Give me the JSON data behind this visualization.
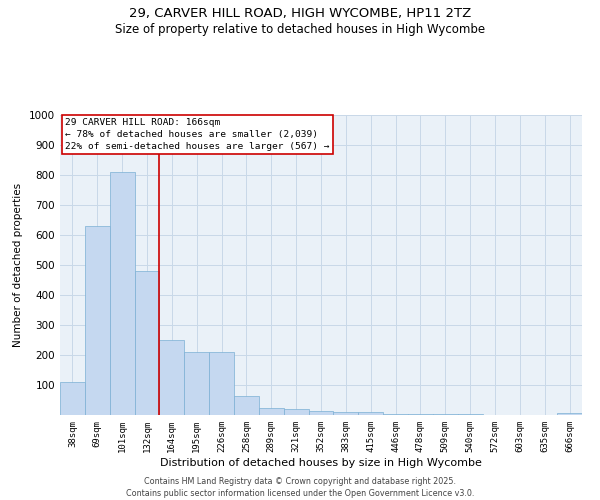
{
  "title_line1": "29, CARVER HILL ROAD, HIGH WYCOMBE, HP11 2TZ",
  "title_line2": "Size of property relative to detached houses in High Wycombe",
  "xlabel": "Distribution of detached houses by size in High Wycombe",
  "ylabel": "Number of detached properties",
  "categories": [
    "38sqm",
    "69sqm",
    "101sqm",
    "132sqm",
    "164sqm",
    "195sqm",
    "226sqm",
    "258sqm",
    "289sqm",
    "321sqm",
    "352sqm",
    "383sqm",
    "415sqm",
    "446sqm",
    "478sqm",
    "509sqm",
    "540sqm",
    "572sqm",
    "603sqm",
    "635sqm",
    "666sqm"
  ],
  "values": [
    110,
    630,
    810,
    480,
    250,
    210,
    210,
    65,
    25,
    20,
    13,
    10,
    10,
    5,
    3,
    2,
    2,
    1,
    1,
    1,
    8
  ],
  "bar_color": "#c5d8f0",
  "bar_edge_color": "#7bafd4",
  "vline_index": 3.5,
  "highlight_label": "29 CARVER HILL ROAD: 166sqm",
  "annotation_line1": "← 78% of detached houses are smaller (2,039)",
  "annotation_line2": "22% of semi-detached houses are larger (567) →",
  "annotation_box_color": "#ffffff",
  "annotation_box_edge": "#cc0000",
  "vline_color": "#cc0000",
  "ylim": [
    0,
    1000
  ],
  "yticks": [
    0,
    100,
    200,
    300,
    400,
    500,
    600,
    700,
    800,
    900,
    1000
  ],
  "grid_color": "#c8d8e8",
  "background_color": "#eaf1f8",
  "footer_line1": "Contains HM Land Registry data © Crown copyright and database right 2025.",
  "footer_line2": "Contains public sector information licensed under the Open Government Licence v3.0."
}
